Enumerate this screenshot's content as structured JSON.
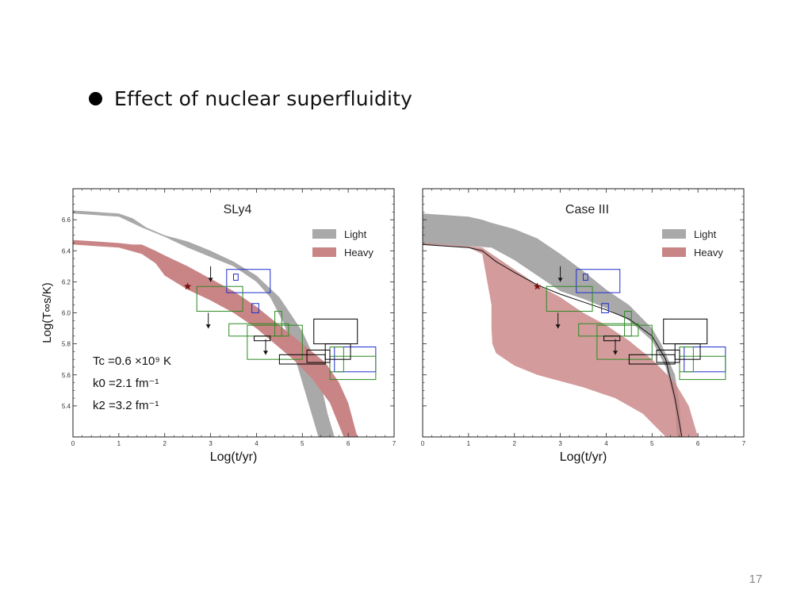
{
  "slide": {
    "bullet": "Effect of nuclear superfluidity",
    "page_number": "17"
  },
  "colors": {
    "light_band": "#a9a9a9",
    "heavy_band": "#c98586",
    "overlap": "#a55e5f",
    "obs_blue": "#1f2dcf",
    "obs_green": "#2c8a22",
    "obs_black": "#000000",
    "star": "#7a1010"
  },
  "chart_data": [
    {
      "type": "area",
      "title": "SLy4",
      "xlabel": "Log(t/yr)",
      "ylabel": "Log(T∞s/K)",
      "xlim": [
        0,
        7
      ],
      "ylim": [
        5.2,
        6.8
      ],
      "x_ticks": [
        "0",
        "1",
        "2",
        "3",
        "4",
        "5",
        "6",
        "7"
      ],
      "y_ticks": [
        "5.4",
        "5.6",
        "5.8",
        "6.0",
        "6.2",
        "6.4",
        "6.6"
      ],
      "legend": {
        "position": "top-right",
        "entries": [
          "Light",
          "Heavy"
        ]
      },
      "annotation": {
        "line1": "Tc =0.6 ×10⁹ K",
        "line2": "k0 =2.1 fm⁻¹",
        "line3": "k2 =3.2 fm⁻¹"
      },
      "series": [
        {
          "name": "Light",
          "upper": [
            [
              0,
              6.66
            ],
            [
              0.5,
              6.65
            ],
            [
              1.0,
              6.64
            ],
            [
              1.3,
              6.61
            ],
            [
              1.6,
              6.55
            ],
            [
              2.0,
              6.5
            ],
            [
              2.5,
              6.46
            ],
            [
              3.0,
              6.4
            ],
            [
              3.5,
              6.33
            ],
            [
              4.0,
              6.24
            ],
            [
              4.5,
              6.1
            ],
            [
              5.0,
              5.88
            ],
            [
              5.2,
              5.75
            ],
            [
              5.4,
              5.55
            ],
            [
              5.55,
              5.35
            ],
            [
              5.7,
              5.2
            ]
          ],
          "lower": [
            [
              5.35,
              5.2
            ],
            [
              5.2,
              5.35
            ],
            [
              5.0,
              5.55
            ],
            [
              4.8,
              5.75
            ],
            [
              4.6,
              5.93
            ],
            [
              4.3,
              6.1
            ],
            [
              4.0,
              6.2
            ],
            [
              3.5,
              6.3
            ],
            [
              3.0,
              6.36
            ],
            [
              2.5,
              6.42
            ],
            [
              2.0,
              6.49
            ],
            [
              1.5,
              6.55
            ],
            [
              1.0,
              6.62
            ],
            [
              0.5,
              6.63
            ],
            [
              0,
              6.64
            ]
          ]
        },
        {
          "name": "Heavy",
          "upper": [
            [
              0,
              6.47
            ],
            [
              0.5,
              6.46
            ],
            [
              1.0,
              6.45
            ],
            [
              1.3,
              6.44
            ],
            [
              1.5,
              6.44
            ],
            [
              1.8,
              6.4
            ],
            [
              2.0,
              6.37
            ],
            [
              2.5,
              6.3
            ],
            [
              3.0,
              6.22
            ],
            [
              3.5,
              6.14
            ],
            [
              4.0,
              6.04
            ],
            [
              4.5,
              5.92
            ],
            [
              5.0,
              5.8
            ],
            [
              5.5,
              5.68
            ],
            [
              5.8,
              5.55
            ],
            [
              6.0,
              5.42
            ],
            [
              6.2,
              5.2
            ]
          ],
          "lower": [
            [
              5.9,
              5.2
            ],
            [
              5.6,
              5.42
            ],
            [
              5.2,
              5.58
            ],
            [
              4.8,
              5.7
            ],
            [
              4.4,
              5.8
            ],
            [
              4.0,
              5.9
            ],
            [
              3.5,
              6.0
            ],
            [
              3.0,
              6.08
            ],
            [
              2.5,
              6.15
            ],
            [
              2.0,
              6.24
            ],
            [
              1.8,
              6.32
            ],
            [
              1.5,
              6.38
            ],
            [
              1.0,
              6.42
            ],
            [
              0.5,
              6.43
            ],
            [
              0,
              6.44
            ]
          ]
        }
      ],
      "observations": {
        "star": [
          [
            2.5,
            6.17
          ]
        ],
        "arrows": [
          [
            3.0,
            6.3,
            6.2
          ],
          [
            2.95,
            6.0,
            5.9
          ],
          [
            4.2,
            5.83,
            5.73
          ]
        ],
        "blue_boxes": [
          [
            3.35,
            4.3,
            6.28,
            6.13
          ],
          [
            3.5,
            3.6,
            6.25,
            6.21
          ],
          [
            3.9,
            4.05,
            6.06,
            6.0
          ],
          [
            5.7,
            6.6,
            5.78,
            5.62
          ]
        ],
        "green_boxes": [
          [
            2.7,
            3.7,
            6.17,
            6.01
          ],
          [
            3.4,
            4.7,
            5.93,
            5.85
          ],
          [
            4.4,
            4.55,
            6.01,
            5.85
          ],
          [
            3.8,
            5.0,
            5.92,
            5.7
          ],
          [
            5.6,
            6.6,
            5.72,
            5.57
          ],
          [
            5.6,
            5.9,
            5.78,
            5.62
          ]
        ],
        "black_boxes": [
          [
            5.25,
            6.2,
            5.96,
            5.8
          ],
          [
            5.1,
            5.6,
            5.76,
            5.68
          ],
          [
            5.5,
            6.05,
            5.8,
            5.7
          ],
          [
            4.5,
            5.5,
            5.73,
            5.67
          ],
          [
            3.95,
            4.3,
            5.85,
            5.82
          ]
        ]
      }
    },
    {
      "type": "area",
      "title": "Case III",
      "xlabel": "Log(t/yr)",
      "ylabel": "",
      "xlim": [
        0,
        7
      ],
      "ylim": [
        5.2,
        6.8
      ],
      "x_ticks": [
        "0",
        "1",
        "2",
        "3",
        "4",
        "5",
        "6",
        "7"
      ],
      "y_ticks": [],
      "legend": {
        "position": "top-right",
        "entries": [
          "Light",
          "Heavy"
        ]
      },
      "series": [
        {
          "name": "Light",
          "upper": [
            [
              0,
              6.64
            ],
            [
              0.5,
              6.63
            ],
            [
              1.0,
              6.62
            ],
            [
              1.3,
              6.6
            ],
            [
              1.5,
              6.58
            ],
            [
              2.0,
              6.54
            ],
            [
              2.5,
              6.48
            ],
            [
              3.0,
              6.38
            ],
            [
              3.5,
              6.27
            ],
            [
              4.0,
              6.15
            ],
            [
              4.5,
              6.05
            ],
            [
              5.0,
              5.9
            ],
            [
              5.2,
              5.8
            ],
            [
              5.5,
              5.6
            ],
            [
              5.6,
              5.4
            ],
            [
              5.65,
              5.2
            ]
          ],
          "lower": [
            [
              5.55,
              5.2
            ],
            [
              5.5,
              5.4
            ],
            [
              5.3,
              5.65
            ],
            [
              5.0,
              5.82
            ],
            [
              4.5,
              5.95
            ],
            [
              4.0,
              6.03
            ],
            [
              3.5,
              6.09
            ],
            [
              3.0,
              6.14
            ],
            [
              2.5,
              6.24
            ],
            [
              2.0,
              6.34
            ],
            [
              1.5,
              6.42
            ],
            [
              1.0,
              6.43
            ],
            [
              0.5,
              6.44
            ],
            [
              0,
              6.44
            ]
          ]
        },
        {
          "name": "Heavy",
          "upper": [
            [
              0,
              6.45
            ],
            [
              0.5,
              6.44
            ],
            [
              1.0,
              6.43
            ],
            [
              1.3,
              6.42
            ],
            [
              1.5,
              6.38
            ],
            [
              2.0,
              6.28
            ],
            [
              2.5,
              6.18
            ],
            [
              3.0,
              6.1
            ],
            [
              3.5,
              6.0
            ],
            [
              4.0,
              5.92
            ],
            [
              4.5,
              5.82
            ],
            [
              5.0,
              5.7
            ],
            [
              5.5,
              5.55
            ],
            [
              5.8,
              5.4
            ],
            [
              6.0,
              5.2
            ]
          ],
          "lower": [
            [
              5.3,
              5.2
            ],
            [
              4.8,
              5.35
            ],
            [
              4.2,
              5.45
            ],
            [
              3.5,
              5.52
            ],
            [
              3.0,
              5.56
            ],
            [
              2.5,
              5.6
            ],
            [
              2.0,
              5.66
            ],
            [
              1.8,
              5.7
            ],
            [
              1.6,
              5.74
            ],
            [
              1.52,
              5.8
            ],
            [
              1.5,
              5.9
            ],
            [
              1.5,
              6.05
            ],
            [
              1.3,
              6.38
            ],
            [
              1.0,
              6.42
            ],
            [
              0.5,
              6.43
            ],
            [
              0,
              6.44
            ]
          ]
        }
      ],
      "curve": [
        [
          0,
          6.44
        ],
        [
          1.0,
          6.42
        ],
        [
          1.3,
          6.4
        ],
        [
          1.6,
          6.33
        ],
        [
          2.0,
          6.26
        ],
        [
          2.5,
          6.18
        ],
        [
          3.0,
          6.12
        ],
        [
          3.5,
          6.07
        ],
        [
          4.0,
          6.02
        ],
        [
          4.5,
          5.96
        ],
        [
          5.0,
          5.85
        ],
        [
          5.3,
          5.7
        ],
        [
          5.5,
          5.45
        ],
        [
          5.65,
          5.2
        ]
      ],
      "observations": {
        "star": [
          [
            2.5,
            6.17
          ]
        ],
        "arrows": [
          [
            3.0,
            6.3,
            6.2
          ],
          [
            2.95,
            6.0,
            5.9
          ],
          [
            4.2,
            5.83,
            5.73
          ]
        ],
        "blue_boxes": [
          [
            3.35,
            4.3,
            6.28,
            6.13
          ],
          [
            3.5,
            3.6,
            6.25,
            6.21
          ],
          [
            3.9,
            4.05,
            6.06,
            6.0
          ],
          [
            5.7,
            6.6,
            5.78,
            5.62
          ]
        ],
        "green_boxes": [
          [
            2.7,
            3.7,
            6.17,
            6.01
          ],
          [
            3.4,
            4.7,
            5.93,
            5.85
          ],
          [
            4.4,
            4.55,
            6.01,
            5.85
          ],
          [
            3.8,
            5.0,
            5.92,
            5.7
          ],
          [
            5.6,
            6.6,
            5.72,
            5.57
          ],
          [
            5.6,
            5.9,
            5.78,
            5.62
          ]
        ],
        "black_boxes": [
          [
            5.25,
            6.2,
            5.96,
            5.8
          ],
          [
            5.1,
            5.6,
            5.76,
            5.68
          ],
          [
            5.5,
            6.05,
            5.8,
            5.7
          ],
          [
            4.5,
            5.5,
            5.73,
            5.67
          ],
          [
            3.95,
            4.3,
            5.85,
            5.82
          ]
        ]
      }
    }
  ]
}
